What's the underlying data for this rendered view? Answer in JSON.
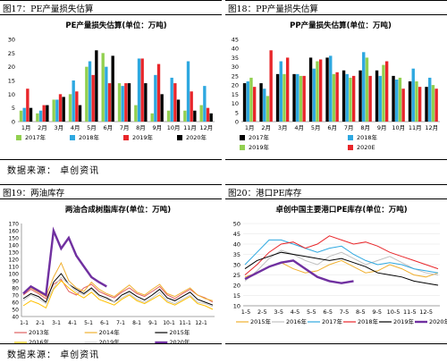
{
  "source_label": "数据来源：  卓创资讯",
  "panels": [
    {
      "fig_title": "图17：PE产量损失估算",
      "chart_data": {
        "type": "bar",
        "title": "PE产量损失估算(单位：万吨)",
        "categories": [
          "1月",
          "2月",
          "3月",
          "4月",
          "5月",
          "6月",
          "7月",
          "8月",
          "9月",
          "10月",
          "11月",
          "12月"
        ],
        "ylim": [
          0,
          30
        ],
        "yticks": [
          0,
          5,
          10,
          15,
          20,
          25,
          30
        ],
        "series": [
          {
            "name": "2017年",
            "color": "#92d050",
            "values": [
              4,
              3,
              8,
              10,
              20,
              25,
              14,
              6,
              3,
              4,
              4,
              6
            ]
          },
          {
            "name": "2018年",
            "color": "#2ea8e0",
            "values": [
              5,
              4,
              8,
              15,
              22,
              20,
              13,
              23,
              17,
              16,
              22,
              13
            ]
          },
          {
            "name": "2019年",
            "color": "#e8262a",
            "values": [
              12,
              6,
              10,
              11,
              17,
              14,
              14,
              23,
              21,
              14,
              11,
              5
            ]
          },
          {
            "name": "2020年",
            "color": "#000000",
            "values": [
              5,
              6,
              9,
              6,
              26,
              24,
              14,
              14,
              10,
              8,
              4,
              3
            ]
          }
        ]
      }
    },
    {
      "fig_title": "图18：PP产量损失估算",
      "chart_data": {
        "type": "bar",
        "title": "PP产量损失估算(单位：万吨)",
        "categories": [
          "1月",
          "2月",
          "3月",
          "4月",
          "5月",
          "6月",
          "7月",
          "8月",
          "9月",
          "10月",
          "11月",
          "12月"
        ],
        "ylim": [
          0,
          45
        ],
        "yticks": [
          0,
          5,
          10,
          15,
          20,
          25,
          30,
          35,
          40,
          45
        ],
        "series": [
          {
            "name": "2017年",
            "color": "#000000",
            "values": [
              21,
              21,
              26,
              26,
              35,
              35,
              28,
              28,
              28,
              25,
              22,
              19
            ]
          },
          {
            "name": "2018年",
            "color": "#2ea8e0",
            "values": [
              22,
              18,
              33,
              26,
              29,
              36,
              26,
              38,
              25,
              23,
              29,
              24
            ]
          },
          {
            "name": "2019年",
            "color": "#92d050",
            "values": [
              24,
              14,
              26,
              25,
              33,
              26,
              24,
              35,
              31,
              24,
              22,
              20
            ]
          },
          {
            "name": "2020E",
            "color": "#e8262a",
            "values": [
              19,
              39,
              35,
              25,
              34,
              27,
              25,
              25,
              33,
              18,
              19,
              18
            ]
          }
        ]
      }
    },
    {
      "fig_title": "图19：两油库存",
      "chart_data": {
        "type": "line",
        "title": "两油合成树脂库存(单位：万吨)",
        "xticks": [
          "1-1",
          "2-1",
          "3-1",
          "4-1",
          "5-1",
          "6-1",
          "7-1",
          "8-1",
          "9-1",
          "10-1",
          "11-1",
          "12-1"
        ],
        "ylim": [
          40,
          170
        ],
        "yticks": [
          40,
          50,
          60,
          70,
          80,
          90,
          100,
          110,
          120,
          130,
          140,
          150,
          160,
          170
        ],
        "series": [
          {
            "name": "2013年",
            "color": "#e06060",
            "values": [
              70,
              78,
              72,
              65,
              85,
              92,
              75,
              70,
              80,
              85,
              75,
              70,
              66,
              74,
              80,
              72,
              68,
              75,
              82,
              70,
              65,
              72,
              78,
              70,
              66,
              60
            ]
          },
          {
            "name": "2014年",
            "color": "#f0b030",
            "values": [
              72,
              80,
              74,
              68,
              95,
              115,
              90,
              80,
              75,
              88,
              78,
              72,
              68,
              76,
              84,
              74,
              70,
              78,
              85,
              72,
              68,
              74,
              80,
              70,
              65,
              62
            ]
          },
          {
            "name": "2015年",
            "color": "#000000",
            "values": [
              65,
              72,
              68,
              60,
              88,
              100,
              85,
              78,
              72,
              80,
              70,
              66,
              60,
              70,
              75,
              68,
              63,
              70,
              78,
              66,
              62,
              68,
              74,
              64,
              60,
              56
            ]
          },
          {
            "name": "2016年",
            "color": "#ffc000",
            "values": [
              55,
              62,
              58,
              52,
              78,
              90,
              80,
              72,
              66,
              74,
              64,
              60,
              56,
              64,
              70,
              62,
              58,
              64,
              70,
              60,
              56,
              62,
              68,
              58,
              55,
              50
            ]
          },
          {
            "name": "2019年",
            "color": "#c8c8c8",
            "values": [
              62,
              70,
              65,
              58,
              80,
              95,
              85,
              75,
              70,
              78,
              68,
              64,
              60,
              66,
              72,
              64,
              60,
              66,
              74,
              62,
              58,
              64,
              70,
              60,
              58,
              54
            ]
          },
          {
            "name": "2020年",
            "color": "#7030a0",
            "values": [
              72,
              82,
              76,
              70,
              160,
              135,
              150,
              125,
              110,
              95,
              88,
              82
            ]
          }
        ]
      }
    },
    {
      "fig_title": "图20：港口PE库存",
      "chart_data": {
        "type": "line",
        "title": "卓创中国主要港口PE库存(单位：万吨)",
        "xticks": [
          "1-5",
          "2-5",
          "3-5",
          "4-5",
          "5-5",
          "6-5",
          "7-5",
          "8-5",
          "9-5",
          "10-5",
          "11-5",
          "12-5"
        ],
        "ylim": [
          10,
          50
        ],
        "yticks": [
          10,
          15,
          20,
          25,
          30,
          35,
          40,
          45,
          50
        ],
        "series": [
          {
            "name": "2015年",
            "color": "#f0b030",
            "values": [
              24,
              26,
              29,
              31,
              28,
              26,
              27,
              30,
              32,
              29,
              26,
              27,
              30,
              28,
              25,
              24,
              26
            ]
          },
          {
            "name": "2016年",
            "color": "#c0c0c0",
            "values": [
              22,
              27,
              33,
              37,
              35,
              32,
              30,
              34,
              36,
              33,
              30,
              32,
              34,
              31,
              28,
              26,
              25
            ]
          },
          {
            "name": "2017年",
            "color": "#2ea8e0",
            "values": [
              30,
              36,
              42,
              42,
              40,
              38,
              36,
              38,
              39,
              35,
              32,
              30,
              31,
              30,
              28,
              27,
              26
            ]
          },
          {
            "name": "2018年",
            "color": "#e8262a",
            "values": [
              25,
              30,
              36,
              40,
              41,
              38,
              40,
              44,
              42,
              40,
              41,
              39,
              36,
              34,
              32,
              30,
              28
            ]
          },
          {
            "name": "2019年",
            "color": "#000000",
            "values": [
              28,
              32,
              34,
              36,
              35,
              34,
              33,
              32,
              33,
              31,
              29,
              26,
              25,
              24,
              22,
              21,
              20
            ]
          },
          {
            "name": "2020年",
            "color": "#7030a0",
            "values": [
              23,
              26,
              29,
              31,
              32,
              28,
              24,
              22,
              21,
              22
            ]
          }
        ]
      }
    }
  ]
}
